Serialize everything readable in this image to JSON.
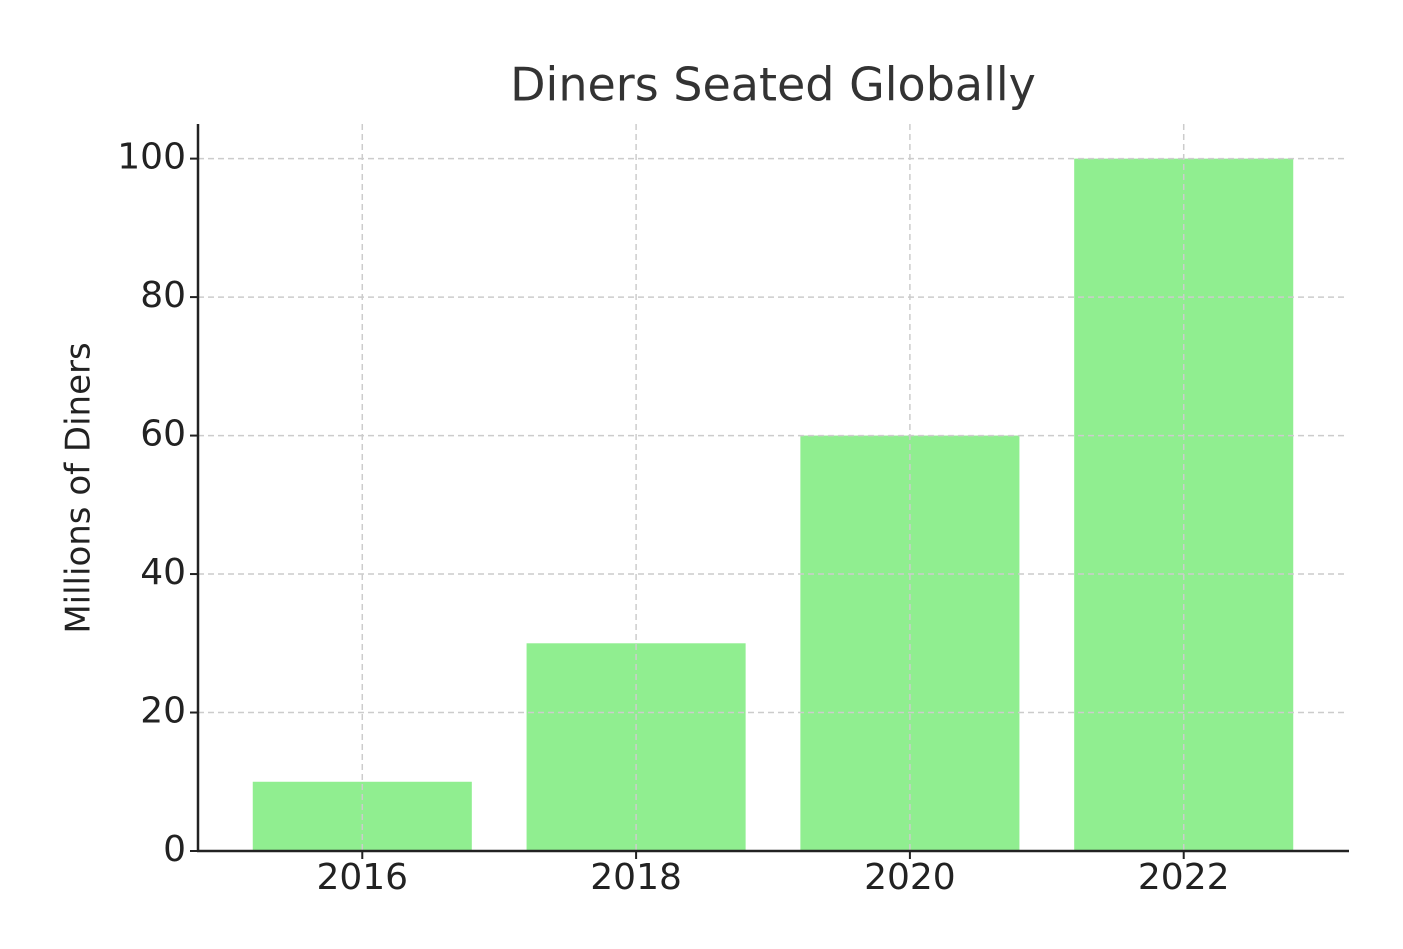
{
  "chart_data": {
    "type": "bar",
    "title": "Diners Seated Globally",
    "y_label": "Millions of Diners",
    "categories": [
      "2016",
      "2018",
      "2020",
      "2022"
    ],
    "values": [
      10,
      30,
      60,
      100
    ],
    "color": "#90ee90",
    "ylim": [
      0,
      105
    ],
    "yticks": [
      0,
      20,
      40,
      60,
      80,
      100
    ],
    "grid": true
  }
}
